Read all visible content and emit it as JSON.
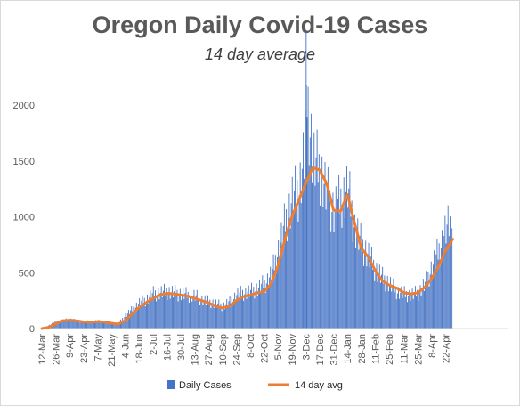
{
  "chart_data": {
    "type": "bar",
    "title": "Oregon Daily Covid-19 Cases",
    "subtitle": "14 day average",
    "xlabel": "",
    "ylabel": "",
    "ylim": [
      0,
      2200
    ],
    "yticks": [
      0,
      500,
      1000,
      1500,
      2000
    ],
    "grid": false,
    "legend_position": "bottom",
    "x_tick_labels": [
      "12-Mar",
      "26-Mar",
      "9-Apr",
      "23-Apr",
      "7-May",
      "21-May",
      "4-Jun",
      "18-Jun",
      "2-Jul",
      "16-Jul",
      "30-Jul",
      "13-Aug",
      "27-Aug",
      "10-Sep",
      "24-Sep",
      "8-Oct",
      "22-Oct",
      "5-Nov",
      "19-Nov",
      "3-Dec",
      "17-Dec",
      "31-Dec",
      "14-Jan",
      "28-Jan",
      "11-Feb",
      "25-Feb",
      "11-Mar",
      "25-Mar",
      "8-Apr",
      "22-Apr"
    ],
    "series": [
      {
        "name": "Daily Cases",
        "type": "bar",
        "color": "#4472c4",
        "points": [
          [
            "12-Mar",
            2
          ],
          [
            "19-Mar",
            30
          ],
          [
            "26-Mar",
            60
          ],
          [
            "2-Apr",
            70
          ],
          [
            "9-Apr",
            80
          ],
          [
            "16-Apr",
            70
          ],
          [
            "23-Apr",
            60
          ],
          [
            "30-Apr",
            60
          ],
          [
            "7-May",
            65
          ],
          [
            "14-May",
            60
          ],
          [
            "21-May",
            50
          ],
          [
            "28-May",
            45
          ],
          [
            "4-Jun",
            120
          ],
          [
            "11-Jun",
            170
          ],
          [
            "18-Jun",
            230
          ],
          [
            "25-Jun",
            260
          ],
          [
            "2-Jul",
            310
          ],
          [
            "9-Jul",
            320
          ],
          [
            "16-Jul",
            330
          ],
          [
            "23-Jul",
            320
          ],
          [
            "30-Jul",
            310
          ],
          [
            "6-Aug",
            300
          ],
          [
            "13-Aug",
            290
          ],
          [
            "20-Aug",
            260
          ],
          [
            "27-Aug",
            240
          ],
          [
            "3-Sep",
            220
          ],
          [
            "10-Sep",
            200
          ],
          [
            "17-Sep",
            240
          ],
          [
            "24-Sep",
            300
          ],
          [
            "1-Oct",
            320
          ],
          [
            "8-Oct",
            330
          ],
          [
            "15-Oct",
            360
          ],
          [
            "22-Oct",
            400
          ],
          [
            "29-Oct",
            480
          ],
          [
            "5-Nov",
            700
          ],
          [
            "12-Nov",
            950
          ],
          [
            "19-Nov",
            1150
          ],
          [
            "26-Nov",
            1250
          ],
          [
            "1-Dec",
            1550
          ],
          [
            "3-Dec",
            2180
          ],
          [
            "10-Dec",
            1500
          ],
          [
            "17-Dec",
            1420
          ],
          [
            "24-Dec",
            1200
          ],
          [
            "31-Dec",
            1050
          ],
          [
            "7-Jan",
            1150
          ],
          [
            "14-Jan",
            1250
          ],
          [
            "21-Jan",
            900
          ],
          [
            "28-Jan",
            750
          ],
          [
            "4-Feb",
            650
          ],
          [
            "11-Feb",
            530
          ],
          [
            "18-Feb",
            450
          ],
          [
            "25-Feb",
            400
          ],
          [
            "4-Mar",
            330
          ],
          [
            "11-Mar",
            310
          ],
          [
            "18-Mar",
            300
          ],
          [
            "25-Mar",
            320
          ],
          [
            "1-Apr",
            400
          ],
          [
            "8-Apr",
            550
          ],
          [
            "15-Apr",
            700
          ],
          [
            "22-Apr",
            880
          ],
          [
            "29-Apr",
            950
          ]
        ]
      },
      {
        "name": "14 day avg",
        "type": "line",
        "color": "#ed7d31",
        "points": [
          [
            "12-Mar",
            0
          ],
          [
            "19-Mar",
            10
          ],
          [
            "26-Mar",
            45
          ],
          [
            "2-Apr",
            70
          ],
          [
            "9-Apr",
            75
          ],
          [
            "16-Apr",
            70
          ],
          [
            "23-Apr",
            60
          ],
          [
            "30-Apr",
            58
          ],
          [
            "7-May",
            62
          ],
          [
            "14-May",
            60
          ],
          [
            "21-May",
            48
          ],
          [
            "28-May",
            40
          ],
          [
            "4-Jun",
            70
          ],
          [
            "11-Jun",
            130
          ],
          [
            "18-Jun",
            190
          ],
          [
            "25-Jun",
            230
          ],
          [
            "2-Jul",
            270
          ],
          [
            "9-Jul",
            300
          ],
          [
            "16-Jul",
            315
          ],
          [
            "23-Jul",
            310
          ],
          [
            "30-Jul",
            300
          ],
          [
            "6-Aug",
            290
          ],
          [
            "13-Aug",
            270
          ],
          [
            "20-Aug",
            250
          ],
          [
            "27-Aug",
            230
          ],
          [
            "3-Sep",
            200
          ],
          [
            "10-Sep",
            185
          ],
          [
            "17-Sep",
            200
          ],
          [
            "24-Sep",
            250
          ],
          [
            "1-Oct",
            285
          ],
          [
            "8-Oct",
            300
          ],
          [
            "15-Oct",
            320
          ],
          [
            "22-Oct",
            330
          ],
          [
            "29-Oct",
            400
          ],
          [
            "5-Nov",
            560
          ],
          [
            "12-Nov",
            800
          ],
          [
            "19-Nov",
            1000
          ],
          [
            "26-Nov",
            1150
          ],
          [
            "3-Dec",
            1300
          ],
          [
            "10-Dec",
            1440
          ],
          [
            "17-Dec",
            1420
          ],
          [
            "24-Dec",
            1300
          ],
          [
            "31-Dec",
            1060
          ],
          [
            "7-Jan",
            1050
          ],
          [
            "14-Jan",
            1200
          ],
          [
            "21-Jan",
            950
          ],
          [
            "28-Jan",
            720
          ],
          [
            "4-Feb",
            640
          ],
          [
            "11-Feb",
            520
          ],
          [
            "18-Feb",
            430
          ],
          [
            "25-Feb",
            390
          ],
          [
            "4-Mar",
            360
          ],
          [
            "11-Mar",
            320
          ],
          [
            "18-Mar",
            310
          ],
          [
            "25-Mar",
            320
          ],
          [
            "1-Apr",
            370
          ],
          [
            "8-Apr",
            450
          ],
          [
            "15-Apr",
            560
          ],
          [
            "22-Apr",
            700
          ],
          [
            "29-Apr",
            800
          ]
        ]
      }
    ]
  }
}
